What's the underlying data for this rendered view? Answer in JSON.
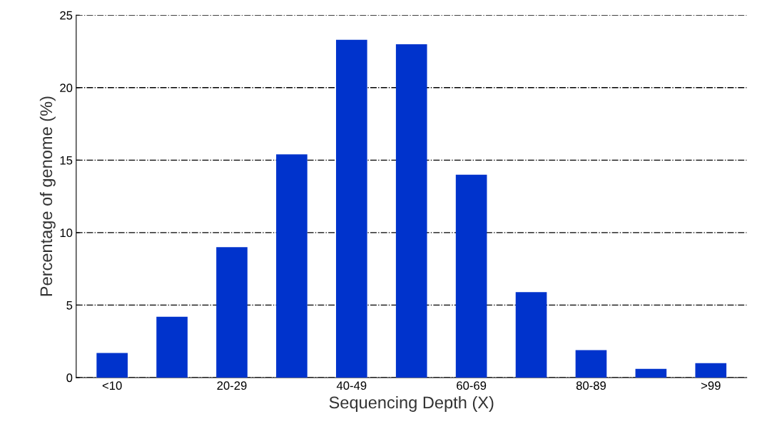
{
  "chart_data": {
    "type": "bar",
    "xlabel": "Sequencing Depth (X)",
    "ylabel": "Percentage of genome (%)",
    "categories": [
      "<10",
      null,
      "20-29",
      null,
      "40-49",
      null,
      "60-69",
      null,
      "80-89",
      null,
      ">99"
    ],
    "values": [
      1.7,
      4.2,
      9.0,
      15.4,
      23.3,
      23.0,
      14.0,
      5.9,
      1.9,
      0.6,
      1.0
    ],
    "color": "#0033cc",
    "ylim": [
      0,
      25
    ],
    "yticks": [
      0,
      5,
      10,
      15,
      20,
      25
    ],
    "grid": "y"
  }
}
